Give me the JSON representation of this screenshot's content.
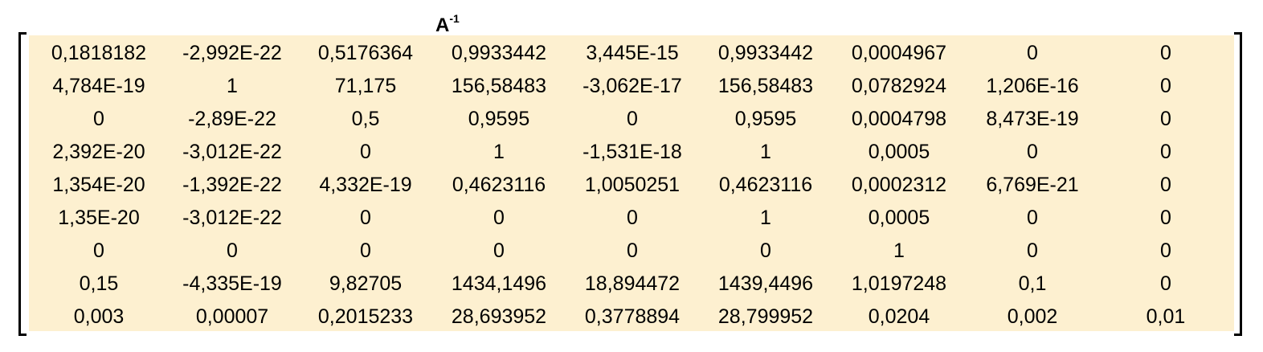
{
  "title": {
    "base": "A",
    "superscript": "-1"
  },
  "matrix": [
    [
      "0,1818182",
      "-2,992E-22",
      "0,5176364",
      "0,9933442",
      "3,445E-15",
      "0,9933442",
      "0,0004967",
      "0",
      "0"
    ],
    [
      "4,784E-19",
      "1",
      "71,175",
      "156,58483",
      "-3,062E-17",
      "156,58483",
      "0,0782924",
      "1,206E-16",
      "0"
    ],
    [
      "0",
      "-2,89E-22",
      "0,5",
      "0,9595",
      "0",
      "0,9595",
      "0,0004798",
      "8,473E-19",
      "0"
    ],
    [
      "2,392E-20",
      "-3,012E-22",
      "0",
      "1",
      "-1,531E-18",
      "1",
      "0,0005",
      "0",
      "0"
    ],
    [
      "1,354E-20",
      "-1,392E-22",
      "4,332E-19",
      "0,4623116",
      "1,0050251",
      "0,4623116",
      "0,0002312",
      "6,769E-21",
      "0"
    ],
    [
      "1,35E-20",
      "-3,012E-22",
      "0",
      "0",
      "0",
      "1",
      "0,0005",
      "0",
      "0"
    ],
    [
      "0",
      "0",
      "0",
      "0",
      "0",
      "0",
      "1",
      "0",
      "0"
    ],
    [
      "0,15",
      "-4,335E-19",
      "9,82705",
      "1434,1496",
      "18,894472",
      "1439,4496",
      "1,0197248",
      "0,1",
      "0"
    ],
    [
      "0,003",
      "0,00007",
      "0,2015233",
      "28,693952",
      "0,3778894",
      "28,799952",
      "0,0204",
      "0,002",
      "0,01"
    ]
  ],
  "colors": {
    "matrix_background": "#fdf0d0",
    "text": "#000000"
  }
}
